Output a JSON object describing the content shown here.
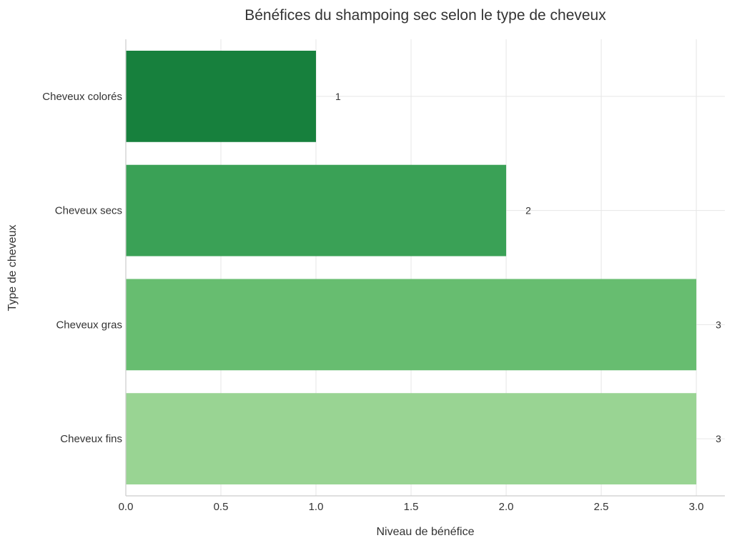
{
  "chart_data": {
    "type": "bar",
    "orientation": "horizontal",
    "title": "Bénéfices du shampoing sec selon le type de cheveux",
    "xlabel": "Niveau de bénéfice",
    "ylabel": "Type de cheveux",
    "categories": [
      "Cheveux colorés",
      "Cheveux secs",
      "Cheveux gras",
      "Cheveux fins"
    ],
    "values": [
      1,
      2,
      3,
      3
    ],
    "data_labels": [
      "1",
      "2",
      "3",
      "3"
    ],
    "colors": [
      "#17803d",
      "#3aa156",
      "#67bd70",
      "#99d493"
    ],
    "xlim": [
      0,
      3.15
    ],
    "xticks": [
      0.0,
      0.5,
      1.0,
      1.5,
      2.0,
      2.5,
      3.0
    ],
    "xtick_labels": [
      "0.0",
      "0.5",
      "1.0",
      "1.5",
      "2.0",
      "2.5",
      "3.0"
    ],
    "grid": true,
    "legend": "none"
  }
}
